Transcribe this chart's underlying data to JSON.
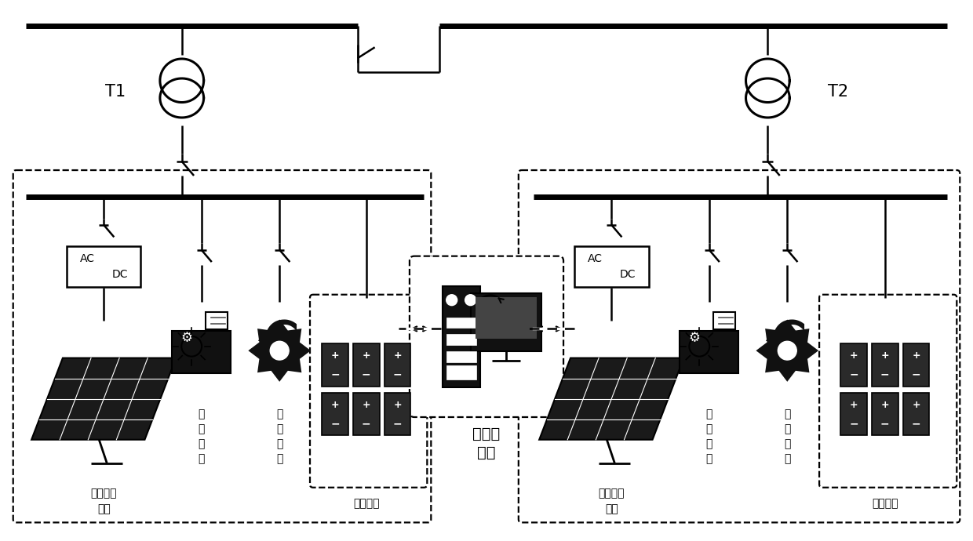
{
  "bg_color": "#ffffff",
  "line_color": "#000000",
  "fig_width": 12.4,
  "fig_height": 6.9,
  "t1_label": "T1",
  "t2_label": "T2",
  "label_pv1": "光伏电池阵列",
  "label_pv1_line2": "阵列",
  "label_important_load1": "重要负荷",
  "label_production_load1": "产线负荷",
  "label_storage1": "储能系统",
  "label_pv2": "光伏电池阵列",
  "label_important_load2": "重要负荷",
  "label_production_load2": "产线负荷",
  "label_storage2": "储能系统",
  "label_controller": "中央控制器",
  "font_size_small": 9,
  "font_size_label": 10,
  "font_size_T": 13,
  "font_size_ctrl": 12
}
